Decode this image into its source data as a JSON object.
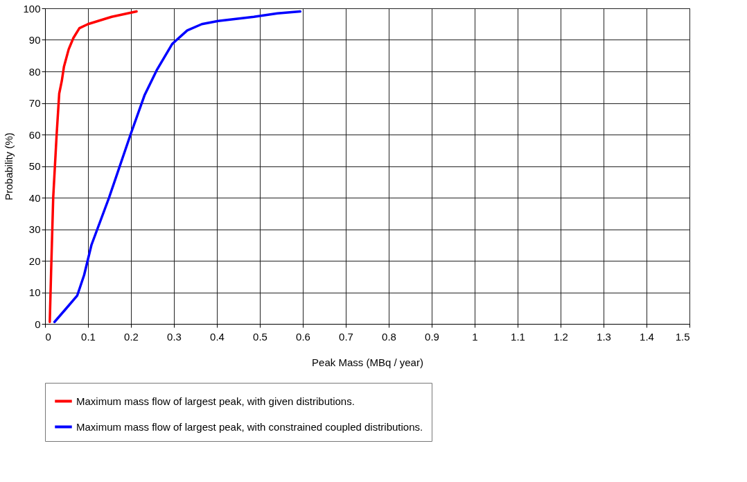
{
  "chart_data": {
    "type": "line",
    "xlabel": "Peak Mass (MBq / year)",
    "ylabel": "Probability (%)",
    "xlim": [
      0,
      1.5
    ],
    "ylim": [
      0,
      100
    ],
    "xticks": [
      0,
      0.1,
      0.2,
      0.3,
      0.4,
      0.5,
      0.6,
      0.7,
      0.8,
      0.9,
      1,
      1.1,
      1.2,
      1.3,
      1.4,
      1.5
    ],
    "yticks": [
      0,
      10,
      20,
      30,
      40,
      50,
      60,
      70,
      80,
      90,
      100
    ],
    "grid": true,
    "legend": "bottom",
    "marker": "none",
    "line_style": "solid",
    "series": [
      {
        "name": "Maximum mass flow of largest peak, with given distributions.",
        "color": "#ff0000",
        "x": [
          0.011,
          0.014,
          0.019,
          0.027,
          0.033,
          0.039,
          0.044,
          0.055,
          0.066,
          0.08,
          0.1,
          0.155,
          0.213
        ],
        "values": [
          0.6,
          16,
          40,
          60,
          73,
          77,
          81.5,
          87,
          90.6,
          93.7,
          95,
          97.3,
          99
        ]
      },
      {
        "name": "Maximum mass flow of largest peak, with constrained coupled distributions.",
        "color": "#0000ff",
        "x": [
          0.022,
          0.05,
          0.075,
          0.091,
          0.108,
          0.149,
          0.199,
          0.232,
          0.26,
          0.296,
          0.331,
          0.365,
          0.403,
          0.486,
          0.541,
          0.594
        ],
        "values": [
          0.6,
          5,
          9,
          15.5,
          25,
          40,
          60,
          72.6,
          80.4,
          88.7,
          93,
          95,
          96,
          97.3,
          98.4,
          99
        ]
      }
    ]
  }
}
